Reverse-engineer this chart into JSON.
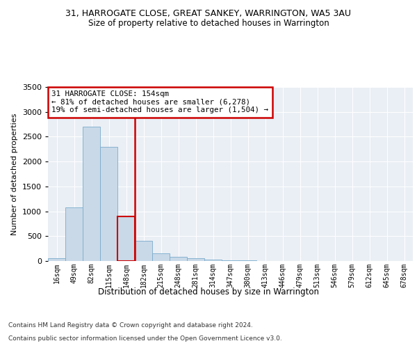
{
  "title1": "31, HARROGATE CLOSE, GREAT SANKEY, WARRINGTON, WA5 3AU",
  "title2": "Size of property relative to detached houses in Warrington",
  "xlabel": "Distribution of detached houses by size in Warrington",
  "ylabel": "Number of detached properties",
  "footnote1": "Contains HM Land Registry data © Crown copyright and database right 2024.",
  "footnote2": "Contains public sector information licensed under the Open Government Licence v3.0.",
  "bin_labels": [
    "16sqm",
    "49sqm",
    "82sqm",
    "115sqm",
    "148sqm",
    "182sqm",
    "215sqm",
    "248sqm",
    "281sqm",
    "314sqm",
    "347sqm",
    "380sqm",
    "413sqm",
    "446sqm",
    "479sqm",
    "513sqm",
    "546sqm",
    "579sqm",
    "612sqm",
    "645sqm",
    "678sqm"
  ],
  "bar_values": [
    50,
    1080,
    2700,
    2300,
    900,
    400,
    160,
    90,
    55,
    35,
    20,
    10,
    5,
    2,
    1,
    0,
    0,
    0,
    0,
    0,
    0
  ],
  "bar_color": "#c9d9e8",
  "bar_edge_color": "#7aabcc",
  "highlight_bar_index": 4,
  "highlight_bar_color": "#cc0000",
  "annotation_text_line1": "31 HARROGATE CLOSE: 154sqm",
  "annotation_text_line2": "← 81% of detached houses are smaller (6,278)",
  "annotation_text_line3": "19% of semi-detached houses are larger (1,504) →",
  "ylim": [
    0,
    3500
  ],
  "yticks": [
    0,
    500,
    1000,
    1500,
    2000,
    2500,
    3000,
    3500
  ],
  "background_color": "#eaeff5",
  "grid_color": "#ffffff",
  "annotation_box_facecolor": "#ffffff",
  "annotation_box_edgecolor": "#cc0000",
  "fig_bg": "#ffffff",
  "title1_fontsize": 9,
  "title2_fontsize": 8.5,
  "ylabel_fontsize": 8,
  "xlabel_fontsize": 8.5,
  "tick_fontsize": 7,
  "footnote_fontsize": 6.5
}
